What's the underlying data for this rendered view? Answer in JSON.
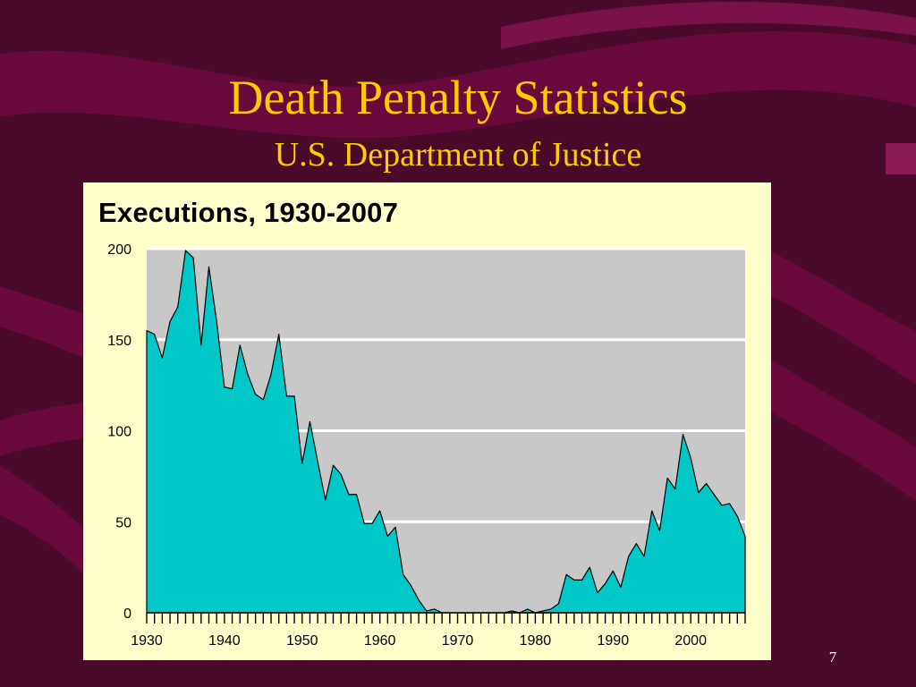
{
  "slide": {
    "title": "Death Penalty Statistics",
    "subtitle": "U.S. Department of Justice",
    "page_number": "7"
  },
  "colors": {
    "background": "#4a0a2a",
    "title": "#ffcc00",
    "panel": "#ffffcc",
    "plot_bg": "#c8c8c8",
    "area_fill": "#00c8c8",
    "gridline": "#ffffff"
  },
  "chart_data": {
    "type": "area",
    "title": "Executions, 1930-2007",
    "xlabel": "",
    "ylabel": "",
    "xlim": [
      1930,
      2007
    ],
    "ylim": [
      0,
      200
    ],
    "yticks": [
      0,
      50,
      100,
      150,
      200
    ],
    "xticks": [
      1930,
      1940,
      1950,
      1960,
      1970,
      1980,
      1990,
      2000
    ],
    "grid": true,
    "x": [
      1930,
      1931,
      1932,
      1933,
      1934,
      1935,
      1936,
      1937,
      1938,
      1939,
      1940,
      1941,
      1942,
      1943,
      1944,
      1945,
      1946,
      1947,
      1948,
      1949,
      1950,
      1951,
      1952,
      1953,
      1954,
      1955,
      1956,
      1957,
      1958,
      1959,
      1960,
      1961,
      1962,
      1963,
      1964,
      1965,
      1966,
      1967,
      1968,
      1969,
      1970,
      1971,
      1972,
      1973,
      1974,
      1975,
      1976,
      1977,
      1978,
      1979,
      1980,
      1981,
      1982,
      1983,
      1984,
      1985,
      1986,
      1987,
      1988,
      1989,
      1990,
      1991,
      1992,
      1993,
      1994,
      1995,
      1996,
      1997,
      1998,
      1999,
      2000,
      2001,
      2002,
      2003,
      2004,
      2005,
      2006,
      2007
    ],
    "values": [
      155,
      153,
      140,
      160,
      168,
      199,
      195,
      147,
      190,
      160,
      124,
      123,
      147,
      131,
      120,
      117,
      131,
      153,
      119,
      119,
      82,
      105,
      83,
      62,
      81,
      76,
      65,
      65,
      49,
      49,
      56,
      42,
      47,
      21,
      15,
      7,
      1,
      2,
      0,
      0,
      0,
      0,
      0,
      0,
      0,
      0,
      0,
      1,
      0,
      2,
      0,
      1,
      2,
      5,
      21,
      18,
      18,
      25,
      11,
      16,
      23,
      14,
      31,
      38,
      31,
      56,
      45,
      74,
      68,
      98,
      85,
      66,
      71,
      65,
      59,
      60,
      53,
      42
    ],
    "series": [
      {
        "values_ref": "values"
      }
    ]
  }
}
